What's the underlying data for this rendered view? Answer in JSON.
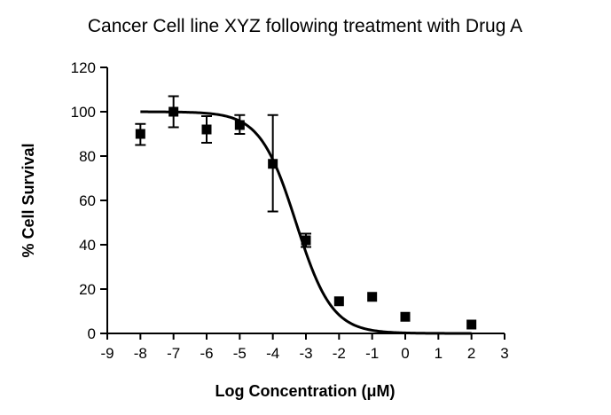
{
  "chart_data": {
    "type": "scatter",
    "title": "Cancer Cell line XYZ following treatment with Drug A",
    "xlabel": "Log Concentration (μM)",
    "ylabel": "% Cell Survival",
    "xlim": [
      -9,
      3
    ],
    "ylim": [
      0,
      120
    ],
    "xticks": [
      "-9",
      "-8",
      "-7",
      "-6",
      "-5",
      "-4",
      "-3",
      "-2",
      "-1",
      "0",
      "1",
      "2",
      "3"
    ],
    "yticks": [
      "0",
      "20",
      "40",
      "60",
      "80",
      "100",
      "120"
    ],
    "grid": false,
    "legend": "none",
    "series": [
      {
        "marker": "square",
        "color": "#000000",
        "x": [
          -8,
          -7,
          -6,
          -5,
          -4,
          -3,
          -2,
          -1,
          0,
          2
        ],
        "y": [
          90,
          100,
          92,
          94,
          76.5,
          42,
          14.5,
          16.5,
          7.5,
          4
        ],
        "error_low": [
          85,
          93,
          86,
          90,
          55,
          39,
          null,
          null,
          null,
          null
        ],
        "error_high": [
          94.5,
          107,
          98,
          98.5,
          98.5,
          45,
          null,
          null,
          null,
          null
        ]
      }
    ],
    "fit_curve": {
      "type": "sigmoidal dose-response",
      "top": 100,
      "bottom": 0,
      "log_ic50": -3.3,
      "hill_slope": -0.8,
      "x_range": [
        -8,
        2
      ],
      "color": "#000000"
    }
  }
}
